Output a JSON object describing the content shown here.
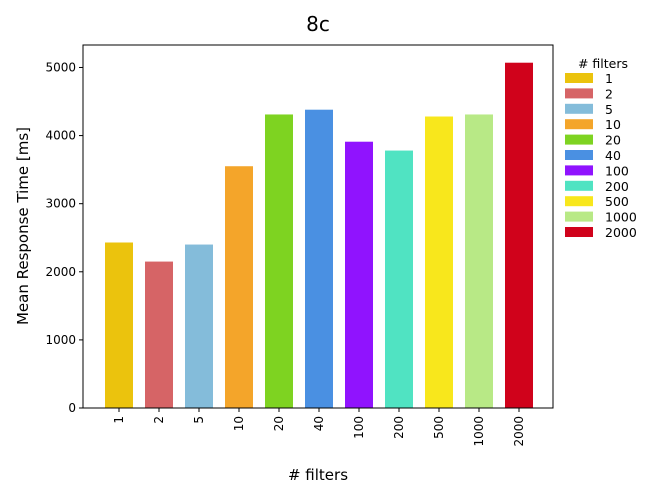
{
  "chart_data": {
    "type": "bar",
    "title": "8c",
    "xlabel": "# filters",
    "ylabel": "Mean Response Time [ms]",
    "categories": [
      "1",
      "2",
      "5",
      "10",
      "20",
      "40",
      "100",
      "200",
      "500",
      "1000",
      "2000"
    ],
    "values": [
      2430,
      2150,
      2400,
      3550,
      4310,
      4380,
      3910,
      3780,
      4280,
      4310,
      5070
    ],
    "colors": [
      "#ebc30d",
      "#d66466",
      "#84bcda",
      "#f4a52a",
      "#7ed321",
      "#4a90e2",
      "#9013fe",
      "#50e3c2",
      "#f8e71c",
      "#b8e986",
      "#d0021b"
    ],
    "ylim": [
      0,
      5330
    ],
    "yticks": [
      0,
      1000,
      2000,
      3000,
      4000,
      5000
    ],
    "grid": false,
    "legend": {
      "title": "# filters",
      "placement": "right",
      "entries": [
        "1",
        "2",
        "5",
        "10",
        "20",
        "40",
        "100",
        "200",
        "500",
        "1000",
        "2000"
      ]
    }
  }
}
